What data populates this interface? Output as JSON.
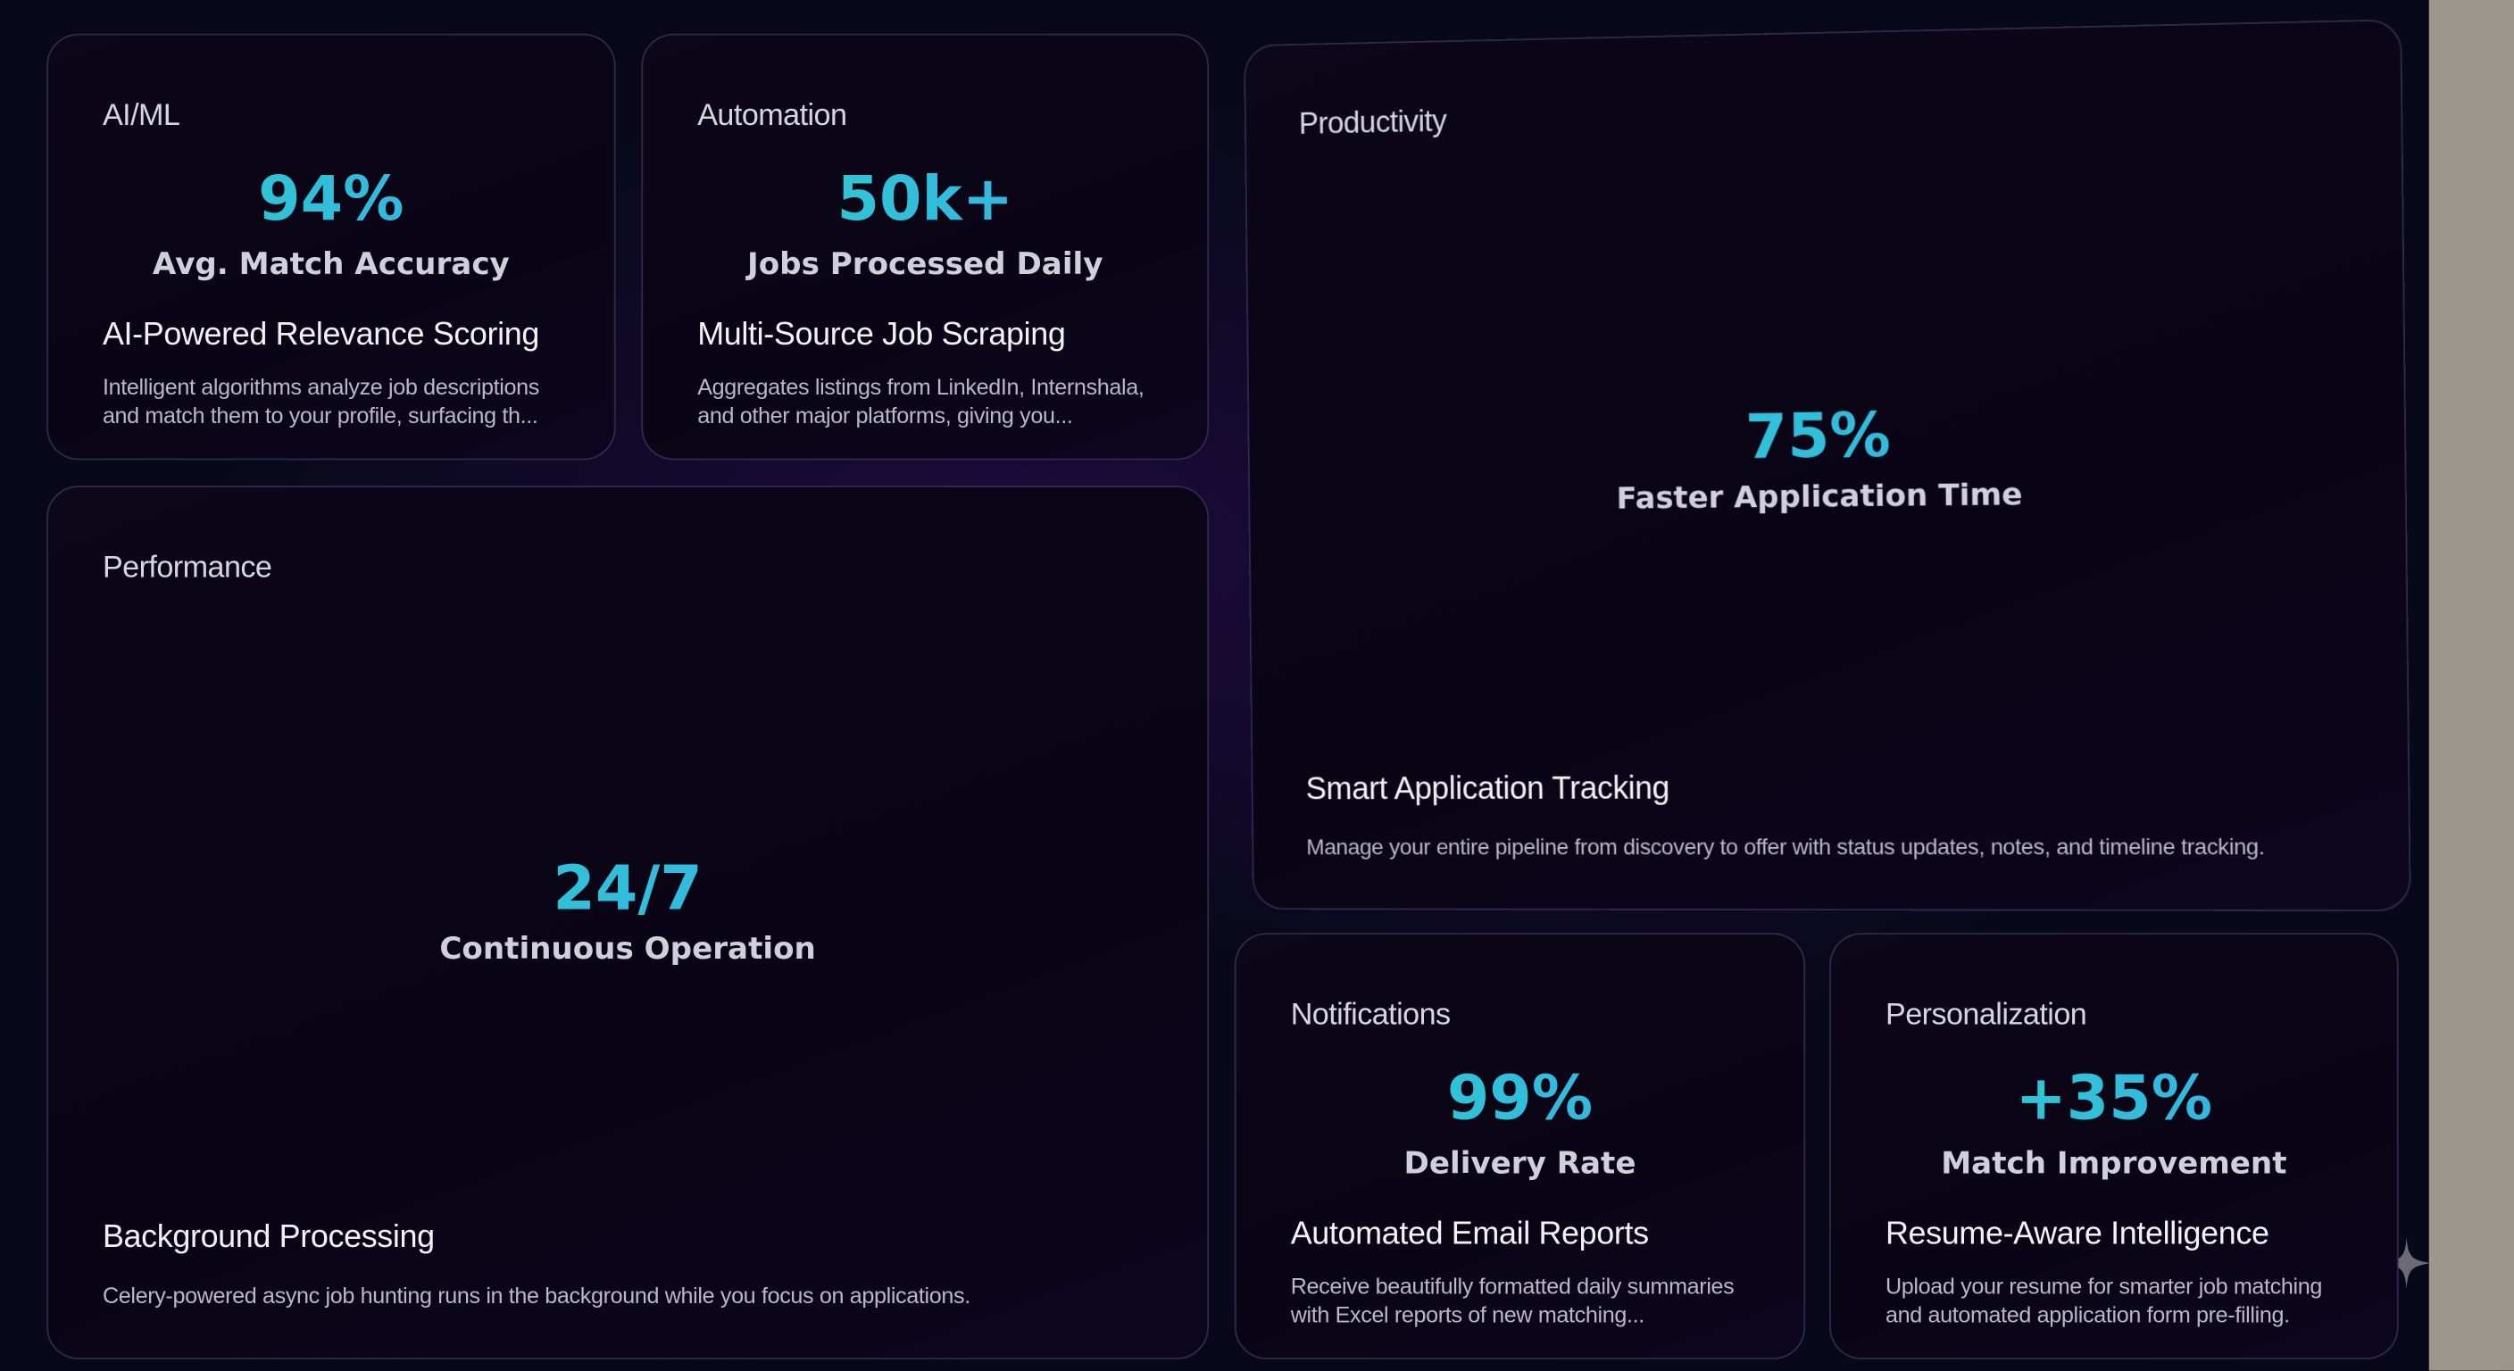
{
  "cards": [
    {
      "category": "AI/ML",
      "stat": "94%",
      "stat_label": "Avg. Match Accuracy",
      "title": "AI-Powered Relevance Scoring",
      "description": "Intelligent algorithms analyze job descriptions and match them to your profile, surfacing th..."
    },
    {
      "category": "Automation",
      "stat": "50k+",
      "stat_label": "Jobs Processed Daily",
      "title": "Multi-Source Job Scraping",
      "description": "Aggregates listings from LinkedIn, Internshala, and other major platforms, giving you..."
    },
    {
      "category": "Productivity",
      "stat": "75%",
      "stat_label": "Faster Application Time",
      "title": "Smart Application Tracking",
      "description": "Manage your entire pipeline from discovery to offer with status updates, notes, and timeline tracking."
    },
    {
      "category": "Performance",
      "stat": "24/7",
      "stat_label": "Continuous Operation",
      "title": "Background Processing",
      "description": "Celery-powered async job hunting runs in the background while you focus on applications."
    },
    {
      "category": "Notifications",
      "stat": "99%",
      "stat_label": "Delivery Rate",
      "title": "Automated Email Reports",
      "description": "Receive beautifully formatted daily summaries with Excel reports of new matching..."
    },
    {
      "category": "Personalization",
      "stat": "+35%",
      "stat_label": "Match Improvement",
      "title": "Resume-Aware Intelligence",
      "description": "Upload your resume for smarter job matching and automated application form pre-filling."
    }
  ]
}
